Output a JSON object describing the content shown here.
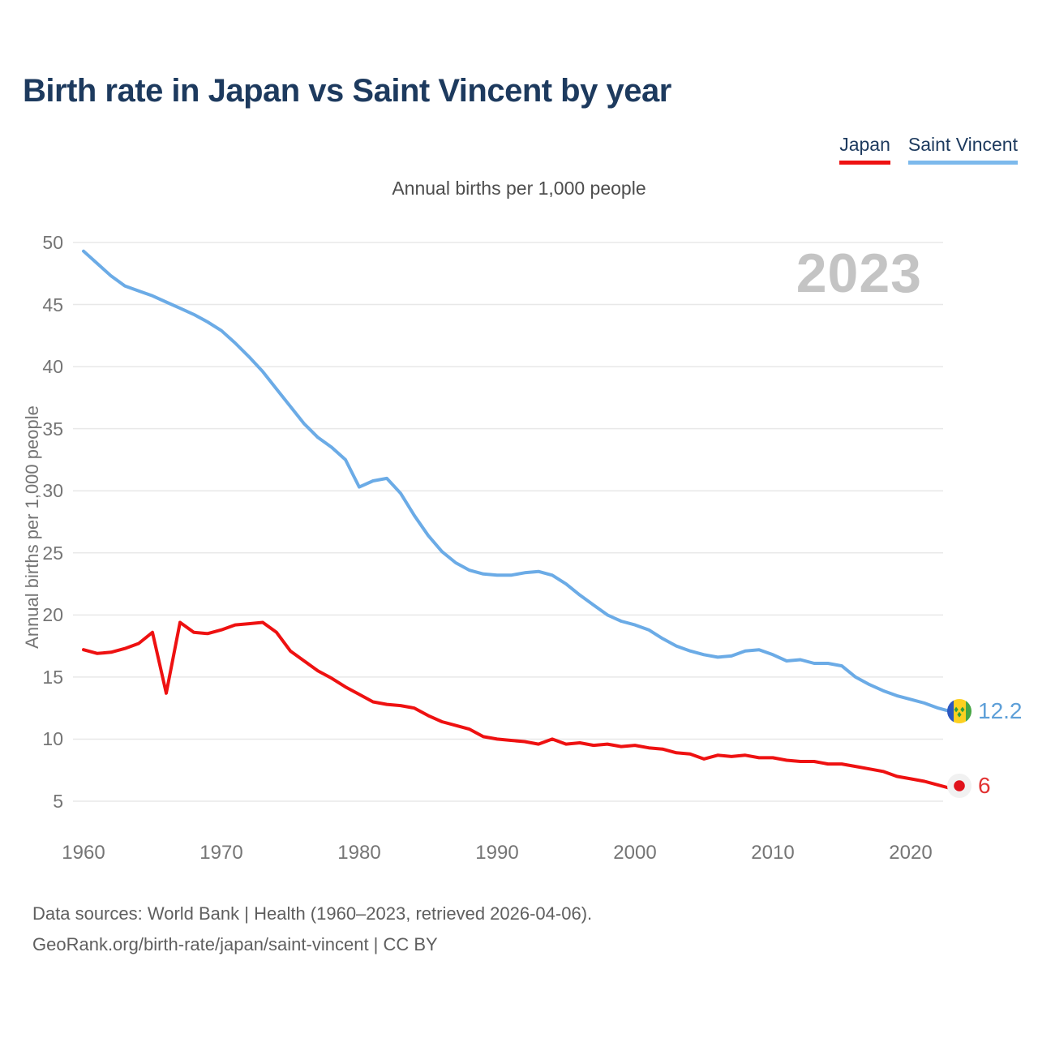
{
  "page": {
    "title": "Birth rate in Japan vs Saint Vincent by year",
    "subtitle": "Annual births per 1,000 people",
    "watermark_year": "2023",
    "footer_line1": "Data sources: World Bank | Health (1960–2023, retrieved 2026-04-06).",
    "footer_line2": "GeoRank.org/birth-rate/japan/saint-vincent | CC BY"
  },
  "legend": {
    "position": "top-right",
    "items": [
      {
        "label": "Japan",
        "color": "#ee1111"
      },
      {
        "label": "Saint Vincent",
        "color": "#7cb9ec"
      }
    ]
  },
  "colors": {
    "japan_line": "#ee1111",
    "saint_vincent_line": "#6babe6",
    "title_navy": "#1d3a5e",
    "watermark_gray": "#c4c4c4",
    "gridline": "#e8e8e8",
    "tick_text": "#757575"
  },
  "end_markers": {
    "saint_vincent": {
      "icon": "saint-vincent-flag-icon",
      "label": "12.2"
    },
    "japan": {
      "icon": "japan-flag-icon",
      "label": "6"
    }
  },
  "chart_data": {
    "type": "line",
    "title": "Annual births per 1,000 people",
    "xlabel": "",
    "ylabel": "Annual births per 1,000 people",
    "x_start": 1960,
    "x_end": 2023,
    "xticks": [
      1960,
      1970,
      1980,
      1990,
      2000,
      2010,
      2020
    ],
    "yticks": [
      5,
      10,
      15,
      20,
      25,
      30,
      35,
      40,
      45,
      50
    ],
    "ylim": [
      5,
      50
    ],
    "grid": "horizontal",
    "legend_position": "top-right",
    "series": [
      {
        "name": "Japan",
        "color": "#ee1111",
        "end_value_label": "6",
        "values": [
          17.2,
          16.9,
          17.0,
          17.3,
          17.7,
          18.6,
          13.7,
          19.4,
          18.6,
          18.5,
          18.8,
          19.2,
          19.3,
          19.4,
          18.6,
          17.1,
          16.3,
          15.5,
          14.9,
          14.2,
          13.6,
          13.0,
          12.8,
          12.7,
          12.5,
          11.9,
          11.4,
          11.1,
          10.8,
          10.2,
          10.0,
          9.9,
          9.8,
          9.6,
          10.0,
          9.6,
          9.7,
          9.5,
          9.6,
          9.4,
          9.5,
          9.3,
          9.2,
          8.9,
          8.8,
          8.4,
          8.7,
          8.6,
          8.7,
          8.5,
          8.5,
          8.3,
          8.2,
          8.2,
          8.0,
          8.0,
          7.8,
          7.6,
          7.4,
          7.0,
          6.8,
          6.6,
          6.3,
          6.0
        ]
      },
      {
        "name": "Saint Vincent",
        "color": "#6babe6",
        "end_value_label": "12.2",
        "values": [
          49.3,
          48.3,
          47.3,
          46.5,
          46.1,
          45.7,
          45.2,
          44.7,
          44.2,
          43.6,
          42.9,
          41.9,
          40.8,
          39.6,
          38.2,
          36.8,
          35.4,
          34.3,
          33.5,
          32.5,
          30.3,
          30.8,
          31.0,
          29.8,
          28.0,
          26.4,
          25.1,
          24.2,
          23.6,
          23.3,
          23.2,
          23.2,
          23.4,
          23.5,
          23.2,
          22.5,
          21.6,
          20.8,
          20.0,
          19.5,
          19.2,
          18.8,
          18.1,
          17.5,
          17.1,
          16.8,
          16.6,
          16.7,
          17.1,
          17.2,
          16.8,
          16.3,
          16.4,
          16.1,
          16.1,
          15.9,
          15.0,
          14.4,
          13.9,
          13.5,
          13.2,
          12.9,
          12.5,
          12.2
        ]
      }
    ]
  }
}
